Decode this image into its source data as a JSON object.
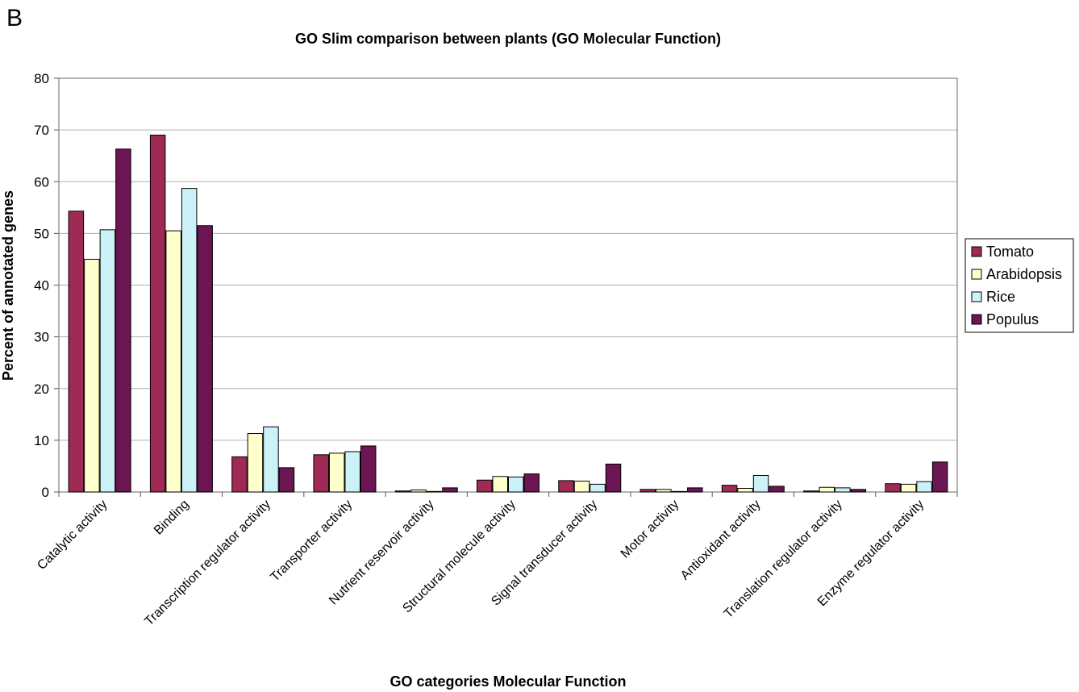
{
  "panel_label": "B",
  "chart_data": {
    "type": "bar",
    "title": "GO Slim comparison between plants (GO Molecular Function)",
    "xlabel": "GO categories Molecular Function",
    "ylabel": "Percent of annotated genes",
    "ylim": [
      0,
      80
    ],
    "yticks": [
      0,
      10,
      20,
      30,
      40,
      50,
      60,
      70,
      80
    ],
    "grid": true,
    "legend_position": "right",
    "categories": [
      "Catalytic activity",
      "Binding",
      "Transcription regulator activity",
      "Transporter activity",
      "Nutrient reservoir activity",
      "Structural molecule activity",
      "Signal transducer activity",
      "Motor activity",
      "Antioxidant activity",
      "Translation regulator activity",
      "Enzyme regulator activity"
    ],
    "series": [
      {
        "name": "Tomato",
        "color": "#9e2a55",
        "values": [
          54.3,
          69.0,
          6.8,
          7.2,
          0.2,
          2.3,
          2.2,
          0.5,
          1.3,
          0.2,
          1.6
        ]
      },
      {
        "name": "Arabidopsis",
        "color": "#ffffcc",
        "values": [
          45.0,
          50.5,
          11.3,
          7.5,
          0.4,
          3.0,
          2.1,
          0.5,
          0.7,
          0.9,
          1.5
        ]
      },
      {
        "name": "Rice",
        "color": "#ccf2f8",
        "values": [
          50.7,
          58.7,
          12.6,
          7.8,
          0.1,
          2.9,
          1.5,
          0.1,
          3.2,
          0.8,
          2.0
        ]
      },
      {
        "name": "Populus",
        "color": "#6b1552",
        "values": [
          66.3,
          51.5,
          4.7,
          8.9,
          0.8,
          3.5,
          5.4,
          0.8,
          1.1,
          0.5,
          5.8
        ]
      }
    ]
  }
}
